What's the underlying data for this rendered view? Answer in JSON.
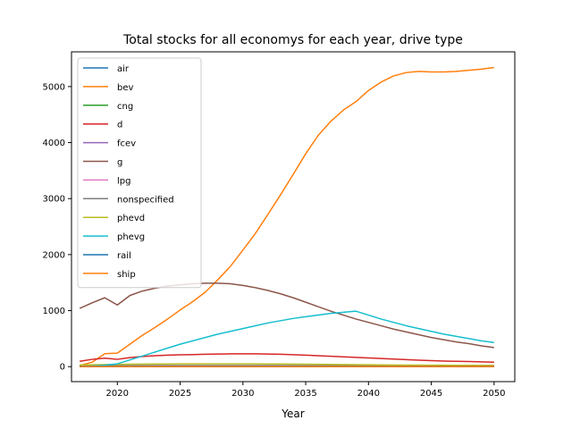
{
  "chart_data": {
    "type": "line",
    "title": "Total stocks for all economys for each year, drive type",
    "xlabel": "Year",
    "ylabel": "",
    "xlim": [
      2016.35,
      2051.65
    ],
    "ylim": [
      -268,
      5620
    ],
    "x_ticks": [
      2020,
      2025,
      2030,
      2035,
      2040,
      2045,
      2050
    ],
    "y_ticks": [
      0,
      1000,
      2000,
      3000,
      4000,
      5000
    ],
    "grid": false,
    "legend_position": "top-left",
    "x": [
      2017,
      2018,
      2019,
      2020,
      2021,
      2022,
      2023,
      2024,
      2025,
      2026,
      2027,
      2028,
      2029,
      2030,
      2031,
      2032,
      2033,
      2034,
      2035,
      2036,
      2037,
      2038,
      2039,
      2040,
      2041,
      2042,
      2043,
      2044,
      2045,
      2046,
      2047,
      2048,
      2049,
      2050
    ],
    "series": [
      {
        "name": "air",
        "color": "#1f77b4",
        "values": [
          5,
          5,
          5,
          5,
          5,
          5,
          5,
          5,
          5,
          5,
          5,
          5,
          5,
          5,
          5,
          5,
          5,
          5,
          5,
          5,
          5,
          5,
          5,
          5,
          5,
          5,
          5,
          5,
          5,
          5,
          5,
          5,
          5,
          5
        ]
      },
      {
        "name": "bev",
        "color": "#ff7f0e",
        "values": [
          20,
          80,
          230,
          240,
          400,
          560,
          700,
          850,
          1010,
          1160,
          1330,
          1550,
          1790,
          2080,
          2380,
          2720,
          3070,
          3430,
          3800,
          4130,
          4380,
          4580,
          4730,
          4930,
          5080,
          5190,
          5250,
          5270,
          5260,
          5260,
          5270,
          5290,
          5310,
          5340
        ]
      },
      {
        "name": "cng",
        "color": "#2ca02c",
        "values": [
          2,
          2,
          2,
          2,
          2,
          2,
          2,
          2,
          2,
          2,
          2,
          2,
          2,
          2,
          2,
          2,
          2,
          2,
          2,
          2,
          2,
          2,
          2,
          2,
          2,
          2,
          2,
          2,
          2,
          2,
          2,
          2,
          2,
          2
        ]
      },
      {
        "name": "d",
        "color": "#d62728",
        "values": [
          95,
          130,
          150,
          130,
          160,
          180,
          195,
          205,
          210,
          215,
          220,
          225,
          228,
          228,
          228,
          225,
          220,
          212,
          205,
          195,
          185,
          175,
          165,
          155,
          145,
          135,
          125,
          115,
          108,
          100,
          95,
          90,
          85,
          80
        ]
      },
      {
        "name": "fcev",
        "color": "#9467bd",
        "values": [
          0,
          0,
          0,
          0,
          0,
          1,
          1,
          1,
          2,
          2,
          2,
          3,
          3,
          3,
          3,
          3,
          3,
          3,
          3,
          3,
          3,
          3,
          3,
          3,
          3,
          3,
          3,
          3,
          3,
          3,
          3,
          3,
          3,
          3
        ]
      },
      {
        "name": "g",
        "color": "#8c564b",
        "values": [
          1040,
          1140,
          1230,
          1100,
          1270,
          1350,
          1400,
          1440,
          1460,
          1480,
          1490,
          1490,
          1480,
          1450,
          1410,
          1360,
          1300,
          1230,
          1150,
          1070,
          990,
          920,
          850,
          790,
          730,
          670,
          620,
          570,
          520,
          480,
          440,
          410,
          370,
          340
        ]
      },
      {
        "name": "lpg",
        "color": "#e377c2",
        "values": [
          8,
          8,
          8,
          8,
          8,
          8,
          8,
          8,
          8,
          8,
          8,
          8,
          8,
          8,
          8,
          8,
          8,
          8,
          8,
          8,
          8,
          8,
          8,
          8,
          8,
          8,
          8,
          8,
          8,
          8,
          8,
          8,
          8,
          8
        ]
      },
      {
        "name": "nonspecified",
        "color": "#7f7f7f",
        "values": [
          20,
          20,
          20,
          20,
          20,
          20,
          20,
          20,
          20,
          20,
          20,
          20,
          20,
          20,
          20,
          20,
          20,
          20,
          20,
          20,
          20,
          20,
          20,
          20,
          20,
          20,
          20,
          20,
          20,
          20,
          20,
          20,
          20,
          20
        ]
      },
      {
        "name": "phevd",
        "color": "#bcbd22",
        "values": [
          30,
          33,
          37,
          40,
          43,
          45,
          47,
          48,
          49,
          50,
          50,
          50,
          50,
          50,
          49,
          48,
          47,
          45,
          43,
          41,
          39,
          37,
          35,
          33,
          31,
          30,
          28,
          27,
          26,
          25,
          24,
          23,
          22,
          22
        ]
      },
      {
        "name": "phevg",
        "color": "#17becf",
        "values": [
          2,
          10,
          25,
          50,
          120,
          190,
          260,
          330,
          400,
          460,
          520,
          580,
          630,
          680,
          730,
          780,
          820,
          860,
          890,
          920,
          950,
          970,
          990,
          920,
          850,
          790,
          730,
          680,
          630,
          580,
          540,
          500,
          460,
          430
        ]
      },
      {
        "name": "rail",
        "color": "#1f77b4",
        "values": [
          3,
          3,
          3,
          3,
          3,
          3,
          3,
          3,
          3,
          3,
          3,
          3,
          3,
          3,
          3,
          3,
          3,
          3,
          3,
          3,
          3,
          3,
          3,
          3,
          3,
          3,
          3,
          3,
          3,
          3,
          3,
          3,
          3,
          3
        ]
      },
      {
        "name": "ship",
        "color": "#ff7f0e",
        "values": [
          1,
          1,
          1,
          1,
          1,
          1,
          1,
          1,
          1,
          1,
          1,
          1,
          1,
          1,
          1,
          1,
          1,
          1,
          1,
          1,
          1,
          1,
          1,
          1,
          1,
          1,
          1,
          1,
          1,
          1,
          1,
          1,
          1,
          1
        ]
      }
    ]
  }
}
